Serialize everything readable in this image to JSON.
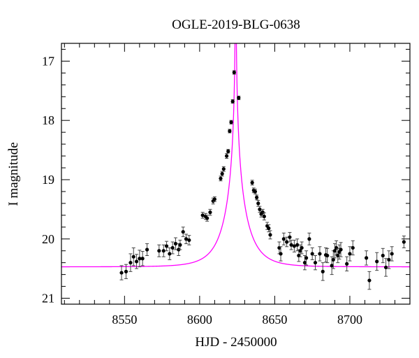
{
  "chart_data": {
    "type": "scatter",
    "title": "OGLE-2019-BLG-0638",
    "xlabel": "HJD - 2450000",
    "ylabel": "I magnitude",
    "xlim": [
      8508,
      8740
    ],
    "ylim": [
      21.1,
      16.7
    ],
    "y_inverted": true,
    "x_ticks": [
      8550,
      8600,
      8650,
      8700
    ],
    "y_ticks": [
      17,
      18,
      19,
      20,
      21
    ],
    "grid": false,
    "colors": {
      "points": "#000000",
      "model": "#ff00ff",
      "axes": "#000000"
    },
    "series": [
      {
        "kind": "points_with_errorbars",
        "points": [
          {
            "x": 8548,
            "y": 20.57,
            "err": 0.12
          },
          {
            "x": 8551,
            "y": 20.55,
            "err": 0.12
          },
          {
            "x": 8554,
            "y": 20.4,
            "err": 0.15
          },
          {
            "x": 8556,
            "y": 20.3,
            "err": 0.15
          },
          {
            "x": 8558,
            "y": 20.38,
            "err": 0.12
          },
          {
            "x": 8560,
            "y": 20.33,
            "err": 0.14
          },
          {
            "x": 8562,
            "y": 20.33,
            "err": 0.12
          },
          {
            "x": 8565,
            "y": 20.18,
            "err": 0.1
          },
          {
            "x": 8573,
            "y": 20.2,
            "err": 0.1
          },
          {
            "x": 8576,
            "y": 20.2,
            "err": 0.1
          },
          {
            "x": 8578,
            "y": 20.12,
            "err": 0.08
          },
          {
            "x": 8580,
            "y": 20.25,
            "err": 0.1
          },
          {
            "x": 8582,
            "y": 20.15,
            "err": 0.1
          },
          {
            "x": 8584,
            "y": 20.08,
            "err": 0.1
          },
          {
            "x": 8586,
            "y": 20.18,
            "err": 0.1
          },
          {
            "x": 8587,
            "y": 20.1,
            "err": 0.08
          },
          {
            "x": 8589,
            "y": 19.88,
            "err": 0.08
          },
          {
            "x": 8591,
            "y": 20.0,
            "err": 0.08
          },
          {
            "x": 8593,
            "y": 20.02,
            "err": 0.08
          },
          {
            "x": 8602,
            "y": 19.6,
            "err": 0.05
          },
          {
            "x": 8604,
            "y": 19.62,
            "err": 0.05
          },
          {
            "x": 8605,
            "y": 19.65,
            "err": 0.05
          },
          {
            "x": 8607,
            "y": 19.55,
            "err": 0.05
          },
          {
            "x": 8609,
            "y": 19.36,
            "err": 0.05
          },
          {
            "x": 8610,
            "y": 19.33,
            "err": 0.04
          },
          {
            "x": 8614,
            "y": 18.98,
            "err": 0.04
          },
          {
            "x": 8615,
            "y": 18.9,
            "err": 0.04
          },
          {
            "x": 8616,
            "y": 18.82,
            "err": 0.04
          },
          {
            "x": 8618,
            "y": 18.6,
            "err": 0.04
          },
          {
            "x": 8619,
            "y": 18.52,
            "err": 0.03
          },
          {
            "x": 8620,
            "y": 18.18,
            "err": 0.03
          },
          {
            "x": 8621,
            "y": 18.03,
            "err": 0.03
          },
          {
            "x": 8622,
            "y": 17.68,
            "err": 0.03
          },
          {
            "x": 8623,
            "y": 17.19,
            "err": 0.03
          },
          {
            "x": 8626,
            "y": 17.62,
            "err": 0.03
          },
          {
            "x": 8635,
            "y": 19.05,
            "err": 0.04
          },
          {
            "x": 8636,
            "y": 19.18,
            "err": 0.04
          },
          {
            "x": 8637,
            "y": 19.2,
            "err": 0.04
          },
          {
            "x": 8638,
            "y": 19.3,
            "err": 0.04
          },
          {
            "x": 8639,
            "y": 19.4,
            "err": 0.05
          },
          {
            "x": 8640,
            "y": 19.5,
            "err": 0.05
          },
          {
            "x": 8641,
            "y": 19.58,
            "err": 0.05
          },
          {
            "x": 8642,
            "y": 19.55,
            "err": 0.05
          },
          {
            "x": 8643,
            "y": 19.62,
            "err": 0.06
          },
          {
            "x": 8645,
            "y": 19.78,
            "err": 0.06
          },
          {
            "x": 8646,
            "y": 19.82,
            "err": 0.06
          },
          {
            "x": 8647,
            "y": 19.93,
            "err": 0.07
          },
          {
            "x": 8653,
            "y": 20.15,
            "err": 0.1
          },
          {
            "x": 8654,
            "y": 20.25,
            "err": 0.12
          },
          {
            "x": 8656,
            "y": 20.0,
            "err": 0.1
          },
          {
            "x": 8658,
            "y": 20.05,
            "err": 0.08
          },
          {
            "x": 8660,
            "y": 19.97,
            "err": 0.08
          },
          {
            "x": 8661,
            "y": 20.1,
            "err": 0.08
          },
          {
            "x": 8663,
            "y": 20.12,
            "err": 0.1
          },
          {
            "x": 8665,
            "y": 20.1,
            "err": 0.1
          },
          {
            "x": 8666,
            "y": 20.28,
            "err": 0.1
          },
          {
            "x": 8667,
            "y": 20.2,
            "err": 0.1
          },
          {
            "x": 8668,
            "y": 20.15,
            "err": 0.1
          },
          {
            "x": 8670,
            "y": 20.4,
            "err": 0.12
          },
          {
            "x": 8671,
            "y": 20.32,
            "err": 0.12
          },
          {
            "x": 8673,
            "y": 20.0,
            "err": 0.1
          },
          {
            "x": 8675,
            "y": 20.25,
            "err": 0.1
          },
          {
            "x": 8677,
            "y": 20.4,
            "err": 0.12
          },
          {
            "x": 8680,
            "y": 20.25,
            "err": 0.12
          },
          {
            "x": 8682,
            "y": 20.55,
            "err": 0.15
          },
          {
            "x": 8684,
            "y": 20.27,
            "err": 0.12
          },
          {
            "x": 8685,
            "y": 20.28,
            "err": 0.12
          },
          {
            "x": 8688,
            "y": 20.45,
            "err": 0.15
          },
          {
            "x": 8689,
            "y": 20.35,
            "err": 0.15
          },
          {
            "x": 8690,
            "y": 20.2,
            "err": 0.12
          },
          {
            "x": 8691,
            "y": 20.15,
            "err": 0.12
          },
          {
            "x": 8692,
            "y": 20.28,
            "err": 0.12
          },
          {
            "x": 8693,
            "y": 20.22,
            "err": 0.12
          },
          {
            "x": 8694,
            "y": 20.18,
            "err": 0.12
          },
          {
            "x": 8698,
            "y": 20.42,
            "err": 0.12
          },
          {
            "x": 8700,
            "y": 20.25,
            "err": 0.12
          },
          {
            "x": 8702,
            "y": 20.15,
            "err": 0.12
          },
          {
            "x": 8711,
            "y": 20.32,
            "err": 0.12
          },
          {
            "x": 8713,
            "y": 20.7,
            "err": 0.15
          },
          {
            "x": 8718,
            "y": 20.38,
            "err": 0.15
          },
          {
            "x": 8722,
            "y": 20.28,
            "err": 0.12
          },
          {
            "x": 8724,
            "y": 20.48,
            "err": 0.15
          },
          {
            "x": 8726,
            "y": 20.35,
            "err": 0.15
          },
          {
            "x": 8728,
            "y": 20.25,
            "err": 0.12
          },
          {
            "x": 8736,
            "y": 20.05,
            "err": 0.1
          }
        ]
      },
      {
        "kind": "model_curve",
        "model": {
          "t0": 8624,
          "tE": 15,
          "u0": 0.004,
          "I_source": 20.47
        }
      }
    ]
  }
}
